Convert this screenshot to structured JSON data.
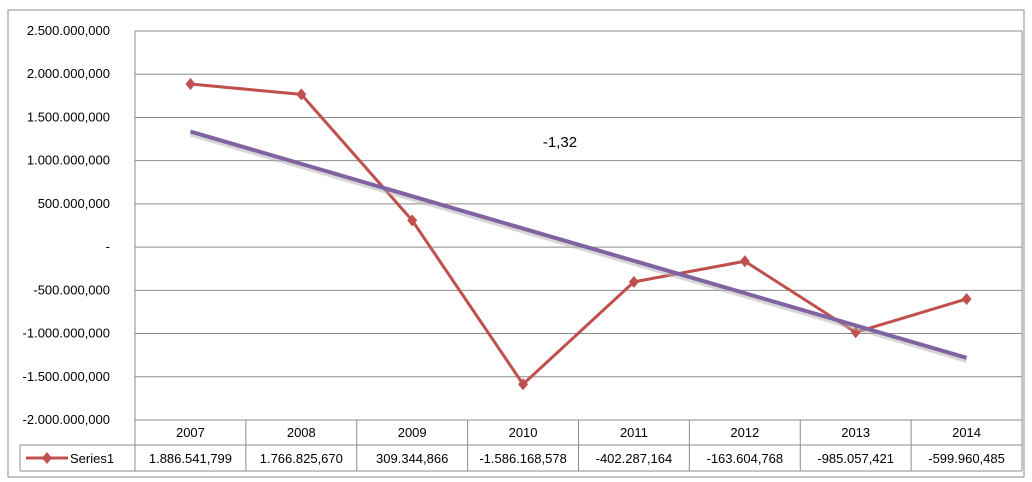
{
  "chart_data": {
    "type": "line",
    "categories": [
      "2007",
      "2008",
      "2009",
      "2010",
      "2011",
      "2012",
      "2013",
      "2014"
    ],
    "series": [
      {
        "name": "Series1",
        "values": [
          1886541799,
          1766825670,
          309344866,
          -1586168578,
          -402287164,
          -163604768,
          -985057421,
          -599960485
        ],
        "value_labels": [
          "1.886.541,799",
          "1.766.825,670",
          "309.344,866",
          "-1.586.168,578",
          "-402.287,164",
          "-163.604,768",
          "-985.057,421",
          "-599.960,485"
        ],
        "color": "#c0504d"
      }
    ],
    "trendline": {
      "type": "linear",
      "color": "#8064a2",
      "label": "-1,32"
    },
    "y_ticks": [
      2500000000,
      2000000000,
      1500000000,
      1000000000,
      500000000,
      0,
      -500000000,
      -1000000000,
      -1500000000,
      -2000000000
    ],
    "y_tick_labels": [
      "2.500.000,000",
      "2.000.000,000",
      "1.500.000,000",
      "1.000.000,000",
      "500.000,000",
      "-",
      "-500.000,000",
      "-1.000.000,000",
      "-1.500.000,000",
      "-2.000.000,000"
    ],
    "ylim": [
      -2000000000,
      2500000000
    ],
    "grid": true,
    "data_table": true,
    "legend": "data-table",
    "title": "",
    "xlabel": "",
    "ylabel": ""
  }
}
